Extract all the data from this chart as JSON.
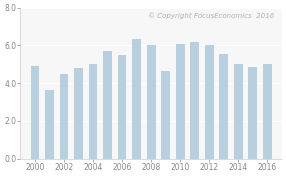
{
  "years": [
    2000,
    2001,
    2002,
    2003,
    2004,
    2005,
    2006,
    2007,
    2008,
    2009,
    2010,
    2011,
    2012,
    2013,
    2014,
    2015,
    2016
  ],
  "values": [
    4.92,
    3.64,
    4.5,
    4.78,
    5.03,
    5.69,
    5.5,
    6.35,
    6.01,
    4.63,
    6.1,
    6.17,
    6.03,
    5.56,
    5.02,
    4.88,
    5.02
  ],
  "bar_color": "#b8cfe0",
  "bar_edge_color": "#b8cfe0",
  "background_color": "#ffffff",
  "plot_bg_color": "#f7f7f7",
  "grid_color": "#ffffff",
  "ylim": [
    0.0,
    8.0
  ],
  "yticks": [
    0.0,
    2.0,
    4.0,
    6.0,
    8.0
  ],
  "xtick_labels": [
    "2000",
    "2002",
    "2004",
    "2006",
    "2008",
    "2010",
    "2012",
    "2014",
    "2016"
  ],
  "xtick_years": [
    2000,
    2002,
    2004,
    2006,
    2008,
    2010,
    2012,
    2014,
    2016
  ],
  "watermark": "© Copyright FocusEconomics  2016",
  "watermark_color": "#b0b0b0",
  "watermark_fontsize": 5.0,
  "tick_fontsize": 5.5,
  "tick_color": "#888888",
  "bar_width": 0.6,
  "xlim_left": 1999.0,
  "xlim_right": 2017.0
}
